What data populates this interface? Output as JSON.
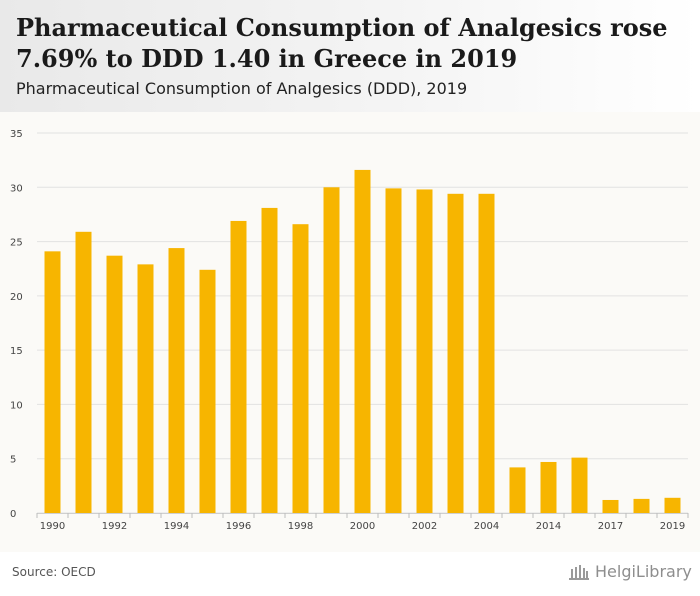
{
  "header": {
    "title": "Pharmaceutical Consumption of Analgesics rose 7.69% to DDD 1.40 in Greece in 2019",
    "subtitle": "Pharmaceutical Consumption of Analgesics (DDD), 2019"
  },
  "footer": {
    "source": "Source: OECD",
    "brand": "HelgiLibrary"
  },
  "colors": {
    "bar": "#f7b500",
    "grid": "#e2e2e2",
    "tick_text": "#444444",
    "header_bg": "#ececec",
    "plot_bg": "#fbfaf7"
  },
  "chart_data": {
    "type": "bar",
    "categories": [
      "1990",
      "1991",
      "1992",
      "1993",
      "1994",
      "1995",
      "1996",
      "1997",
      "1998",
      "1999",
      "2000",
      "2001",
      "2002",
      "2003",
      "2004",
      "2013",
      "2014",
      "2015",
      "2017",
      "2018",
      "2019"
    ],
    "x_tick_labels": [
      "1990",
      "",
      "1992",
      "",
      "1994",
      "",
      "1996",
      "",
      "1998",
      "",
      "2000",
      "",
      "2002",
      "",
      "2004",
      "",
      "2014",
      "",
      "2017",
      "",
      "2019"
    ],
    "values": [
      24.1,
      25.9,
      23.7,
      22.9,
      24.4,
      22.4,
      26.9,
      28.1,
      26.6,
      30.0,
      31.6,
      29.9,
      29.8,
      29.4,
      29.4,
      4.2,
      4.7,
      5.1,
      1.2,
      1.3,
      1.4
    ],
    "ylim": [
      0,
      35
    ],
    "yticks": [
      0,
      5,
      10,
      15,
      20,
      25,
      30,
      35
    ],
    "grid": true,
    "xlabel": "",
    "ylabel": ""
  }
}
